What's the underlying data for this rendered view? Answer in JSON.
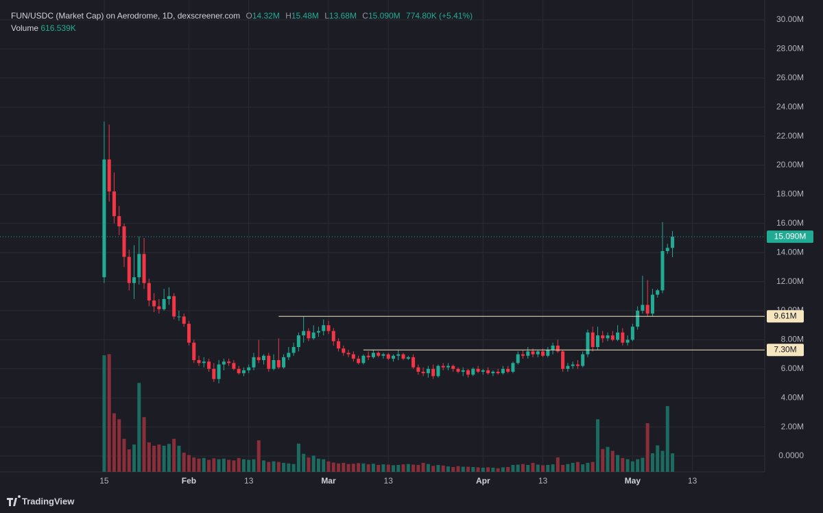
{
  "chart_data": {
    "type": "candlestick",
    "title": "FUN/USDC (Market Cap) on Aerodrome, 1D, dexscreener.com",
    "legend": {
      "o_label": "O",
      "o": "14.32M",
      "h_label": "H",
      "h": "15.48M",
      "l_label": "L",
      "l": "13.68M",
      "c_label": "C",
      "c": "15.090M",
      "change": "774.80K (+5.41%)",
      "volume_label": "Volume",
      "volume": "616.539K"
    },
    "colors": {
      "up": "#22ab94",
      "down": "#f23645",
      "up_volume": "#1b6b60",
      "down_volume": "#8a2e3a",
      "level": "#f5e6c0"
    },
    "ohlc": [
      [
        12.3,
        23.0,
        11.9,
        20.4
      ],
      [
        20.4,
        22.8,
        17.5,
        18.2
      ],
      [
        18.2,
        19.5,
        16.0,
        16.5
      ],
      [
        16.5,
        17.2,
        15.2,
        15.8
      ],
      [
        15.8,
        16.0,
        13.0,
        13.7
      ],
      [
        13.7,
        14.2,
        11.4,
        11.9
      ],
      [
        11.9,
        14.5,
        10.8,
        12.3
      ],
      [
        12.3,
        15.1,
        11.8,
        13.9
      ],
      [
        13.9,
        15.0,
        11.5,
        11.9
      ],
      [
        11.9,
        12.2,
        10.3,
        10.7
      ],
      [
        10.7,
        11.2,
        9.9,
        10.3
      ],
      [
        10.3,
        10.8,
        9.8,
        10.1
      ],
      [
        10.1,
        11.5,
        10.0,
        10.8
      ],
      [
        10.8,
        11.6,
        10.4,
        11.0
      ],
      [
        11.0,
        11.2,
        9.4,
        9.6
      ],
      [
        9.6,
        10.0,
        9.3,
        9.6
      ],
      [
        9.6,
        9.8,
        8.9,
        9.1
      ],
      [
        9.1,
        9.3,
        7.6,
        7.8
      ],
      [
        7.8,
        8.0,
        6.4,
        6.6
      ],
      [
        6.6,
        6.9,
        6.2,
        6.4
      ],
      [
        6.4,
        6.8,
        6.1,
        6.5
      ],
      [
        6.5,
        6.7,
        5.8,
        6.0
      ],
      [
        6.0,
        6.4,
        5.1,
        5.3
      ],
      [
        5.3,
        6.6,
        5.0,
        6.3
      ],
      [
        6.3,
        6.7,
        5.9,
        6.5
      ],
      [
        6.5,
        6.7,
        6.2,
        6.4
      ],
      [
        6.4,
        6.6,
        5.9,
        6.0
      ],
      [
        6.0,
        6.2,
        5.6,
        5.7
      ],
      [
        5.7,
        6.1,
        5.5,
        5.9
      ],
      [
        5.9,
        6.3,
        5.7,
        6.1
      ],
      [
        6.1,
        7.1,
        5.9,
        6.8
      ],
      [
        6.8,
        8.0,
        6.4,
        6.6
      ],
      [
        6.6,
        7.0,
        6.3,
        6.9
      ],
      [
        6.9,
        7.1,
        5.8,
        6.0
      ],
      [
        6.0,
        7.0,
        5.9,
        6.6
      ],
      [
        6.6,
        8.1,
        6.0,
        6.1
      ],
      [
        6.1,
        7.0,
        6.0,
        6.8
      ],
      [
        6.8,
        7.5,
        6.6,
        7.1
      ],
      [
        7.1,
        7.8,
        6.9,
        7.5
      ],
      [
        7.5,
        8.5,
        7.2,
        8.3
      ],
      [
        8.3,
        9.6,
        7.8,
        8.6
      ],
      [
        8.6,
        8.8,
        7.9,
        8.1
      ],
      [
        8.1,
        9.0,
        8.0,
        8.5
      ],
      [
        8.5,
        8.9,
        8.2,
        8.6
      ],
      [
        8.6,
        9.4,
        8.3,
        9.0
      ],
      [
        9.0,
        9.3,
        8.4,
        8.6
      ],
      [
        8.6,
        8.8,
        7.6,
        7.9
      ],
      [
        7.9,
        8.1,
        7.2,
        7.4
      ],
      [
        7.4,
        7.6,
        6.9,
        7.1
      ],
      [
        7.1,
        7.3,
        6.8,
        7.0
      ],
      [
        7.0,
        7.2,
        6.5,
        6.7
      ],
      [
        6.7,
        6.9,
        6.3,
        6.4
      ],
      [
        6.4,
        7.0,
        6.3,
        6.9
      ],
      [
        6.9,
        7.2,
        6.6,
        6.8
      ],
      [
        6.8,
        7.3,
        6.7,
        7.1
      ],
      [
        7.1,
        7.2,
        6.8,
        6.9
      ],
      [
        6.9,
        7.1,
        6.7,
        7.0
      ],
      [
        7.0,
        7.1,
        6.6,
        6.7
      ],
      [
        6.7,
        7.0,
        6.5,
        6.9
      ],
      [
        6.9,
        7.3,
        6.6,
        7.0
      ],
      [
        7.0,
        7.1,
        6.6,
        6.7
      ],
      [
        6.7,
        6.9,
        6.6,
        6.8
      ],
      [
        6.8,
        7.0,
        6.0,
        6.1
      ],
      [
        6.1,
        6.3,
        5.6,
        5.8
      ],
      [
        5.8,
        6.1,
        5.5,
        5.7
      ],
      [
        5.7,
        6.2,
        5.4,
        6.0
      ],
      [
        6.0,
        6.3,
        5.3,
        5.5
      ],
      [
        5.5,
        6.3,
        5.4,
        6.2
      ],
      [
        6.2,
        6.4,
        5.9,
        6.1
      ],
      [
        6.1,
        6.4,
        5.9,
        6.2
      ],
      [
        6.2,
        6.3,
        5.8,
        6.0
      ],
      [
        6.0,
        6.1,
        5.7,
        5.8
      ],
      [
        5.8,
        6.1,
        5.5,
        5.9
      ],
      [
        5.9,
        6.0,
        5.4,
        5.6
      ],
      [
        5.6,
        6.1,
        5.5,
        6.0
      ],
      [
        6.0,
        6.2,
        5.7,
        5.8
      ],
      [
        5.8,
        6.0,
        5.6,
        5.9
      ],
      [
        5.9,
        6.1,
        5.6,
        5.7
      ],
      [
        5.7,
        5.9,
        5.5,
        5.8
      ],
      [
        5.8,
        6.0,
        5.6,
        5.7
      ],
      [
        5.7,
        6.2,
        5.6,
        6.0
      ],
      [
        6.0,
        6.2,
        5.7,
        5.8
      ],
      [
        5.8,
        6.5,
        5.7,
        6.4
      ],
      [
        6.4,
        7.2,
        6.3,
        7.0
      ],
      [
        7.0,
        7.3,
        6.7,
        6.9
      ],
      [
        6.9,
        7.5,
        6.7,
        7.2
      ],
      [
        7.2,
        7.4,
        6.8,
        7.0
      ],
      [
        7.0,
        7.3,
        6.8,
        7.2
      ],
      [
        7.2,
        7.4,
        6.8,
        6.9
      ],
      [
        6.9,
        7.5,
        6.8,
        7.3
      ],
      [
        7.3,
        7.8,
        7.0,
        7.6
      ],
      [
        7.6,
        8.0,
        7.1,
        7.2
      ],
      [
        7.2,
        7.3,
        5.8,
        6.0
      ],
      [
        6.0,
        6.4,
        5.8,
        6.2
      ],
      [
        6.2,
        6.5,
        6.0,
        6.3
      ],
      [
        6.3,
        6.6,
        6.0,
        6.2
      ],
      [
        6.2,
        7.2,
        6.1,
        7.0
      ],
      [
        7.0,
        8.7,
        6.8,
        8.5
      ],
      [
        8.5,
        8.9,
        7.2,
        7.5
      ],
      [
        7.5,
        8.9,
        7.3,
        8.3
      ],
      [
        8.3,
        8.6,
        7.8,
        8.1
      ],
      [
        8.1,
        8.5,
        7.9,
        8.3
      ],
      [
        8.3,
        8.6,
        7.9,
        8.0
      ],
      [
        8.0,
        9.0,
        7.9,
        8.5
      ],
      [
        8.5,
        8.8,
        7.6,
        7.8
      ],
      [
        7.8,
        8.3,
        7.6,
        8.0
      ],
      [
        8.0,
        9.1,
        7.9,
        8.9
      ],
      [
        8.9,
        10.3,
        8.7,
        10.0
      ],
      [
        10.0,
        12.4,
        9.8,
        10.4
      ],
      [
        10.4,
        12.1,
        9.6,
        9.8
      ],
      [
        9.8,
        11.5,
        9.6,
        11.1
      ],
      [
        11.1,
        11.5,
        10.9,
        11.4
      ],
      [
        11.4,
        16.1,
        11.2,
        14.1
      ],
      [
        14.1,
        14.6,
        13.9,
        14.32
      ],
      [
        14.32,
        15.48,
        13.68,
        15.09
      ]
    ],
    "volume": [
      3880,
      3920,
      1950,
      1750,
      1100,
      750,
      910,
      2960,
      1820,
      980,
      870,
      910,
      870,
      930,
      1100,
      870,
      640,
      560,
      480,
      440,
      460,
      400,
      450,
      420,
      440,
      400,
      380,
      460,
      420,
      400,
      420,
      1050,
      380,
      330,
      350,
      330,
      300,
      280,
      260,
      940,
      600,
      480,
      540,
      440,
      420,
      350,
      310,
      280,
      300,
      260,
      270,
      290,
      280,
      250,
      270,
      230,
      250,
      240,
      220,
      230,
      250,
      260,
      240,
      230,
      300,
      260,
      200,
      230,
      210,
      180,
      160,
      190,
      170,
      170,
      160,
      150,
      140,
      150,
      140,
      120,
      150,
      160,
      230,
      240,
      260,
      230,
      300,
      240,
      220,
      230,
      250,
      480,
      230,
      260,
      300,
      330,
      250,
      300,
      330,
      1750,
      760,
      830,
      700,
      560,
      460,
      420,
      350,
      420,
      470,
      1620,
      620,
      880,
      700,
      2190,
      616.539
    ],
    "vlim": [
      0,
      5000
    ],
    "xlim": [
      -20.9,
      132.5
    ],
    "xticks": [
      {
        "value": 0,
        "label": "15"
      },
      {
        "value": 17,
        "label": "Feb"
      },
      {
        "value": 29,
        "label": "13"
      },
      {
        "value": 45,
        "label": "Mar"
      },
      {
        "value": 57,
        "label": "13"
      },
      {
        "value": 76,
        "label": "Apr"
      },
      {
        "value": 88,
        "label": "13"
      },
      {
        "value": 106,
        "label": "May"
      },
      {
        "value": 118,
        "label": "13"
      }
    ],
    "ylim": [
      0,
      30
    ],
    "yticks": [
      {
        "value": 0,
        "label": "0.0000"
      },
      {
        "value": 2,
        "label": "2.00M"
      },
      {
        "value": 4,
        "label": "4.00M"
      },
      {
        "value": 6,
        "label": "6.00M"
      },
      {
        "value": 8,
        "label": "8.00M"
      },
      {
        "value": 10,
        "label": "10.00M"
      },
      {
        "value": 12,
        "label": "12.00M"
      },
      {
        "value": 14,
        "label": "14.00M"
      },
      {
        "value": 16,
        "label": "16.00M"
      },
      {
        "value": 18,
        "label": "18.00M"
      },
      {
        "value": 20,
        "label": "20.00M"
      },
      {
        "value": 22,
        "label": "22.00M"
      },
      {
        "value": 24,
        "label": "24.00M"
      },
      {
        "value": 26,
        "label": "26.00M"
      },
      {
        "value": 28,
        "label": "28.00M"
      },
      {
        "value": 30,
        "label": "30.00M"
      }
    ],
    "grid": true,
    "levels": [
      {
        "value": 9.61,
        "label": "9.61M"
      },
      {
        "value": 7.3,
        "label": "7.30M"
      }
    ],
    "last": {
      "value": 15.09,
      "label": "15.090M"
    },
    "brand": "TradingView"
  }
}
